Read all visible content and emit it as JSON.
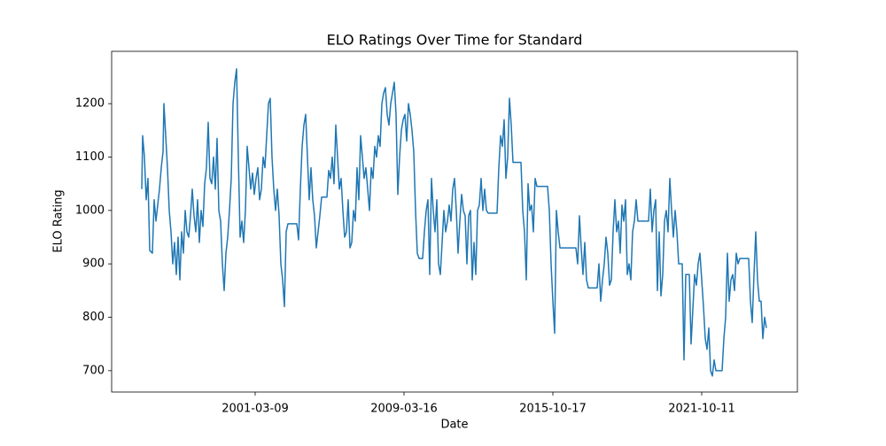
{
  "chart_data": {
    "type": "line",
    "title": "ELO Ratings Over Time for Standard",
    "x_label": "Date",
    "y_label": "ELO Rating",
    "color": "#1f77b4",
    "x": [
      40,
      41,
      43,
      45,
      47,
      49,
      52,
      54,
      56,
      58,
      60,
      62,
      64,
      65,
      67,
      69,
      71,
      73,
      75,
      77,
      79,
      81,
      83,
      85,
      87,
      89,
      91,
      93,
      95,
      97,
      99,
      101,
      103,
      105,
      107,
      109,
      111,
      113,
      115,
      117,
      119,
      121,
      123,
      125,
      127,
      129,
      131,
      133,
      135,
      137,
      139,
      141,
      143,
      145,
      147,
      149,
      151,
      153,
      155,
      157,
      159,
      161,
      163,
      165,
      167,
      169,
      171,
      173,
      175,
      177,
      179,
      181,
      183,
      185,
      187,
      189,
      191,
      193,
      195,
      197,
      199,
      201,
      203,
      205,
      207,
      215,
      217,
      219,
      221,
      223,
      225,
      227,
      229,
      231,
      233,
      235,
      237,
      239,
      241,
      243,
      249,
      251,
      253,
      255,
      257,
      259,
      261,
      263,
      265,
      267,
      269,
      271,
      273,
      275,
      277,
      279,
      281,
      283,
      285,
      287,
      289,
      291,
      293,
      295,
      297,
      299,
      301,
      303,
      305,
      307,
      309,
      311,
      313,
      315,
      317,
      319,
      321,
      323,
      325,
      327,
      329,
      331,
      333,
      335,
      337,
      339,
      341,
      343,
      345,
      347,
      349,
      351,
      353,
      357,
      359,
      361,
      363,
      365,
      367,
      369,
      371,
      373,
      375,
      377,
      379,
      381,
      383,
      385,
      387,
      389,
      391,
      393,
      395,
      397,
      399,
      401,
      403,
      405,
      407,
      409,
      411,
      413,
      415,
      417,
      419,
      421,
      423,
      425,
      427,
      429,
      431,
      441,
      443,
      445,
      447,
      449,
      451,
      453,
      455,
      457,
      459,
      468,
      470,
      472,
      474,
      476,
      478,
      480,
      482,
      484,
      486,
      498,
      500,
      502,
      504,
      506,
      508,
      510,
      512,
      530,
      532,
      534,
      536,
      538,
      540,
      542,
      544,
      554,
      556,
      558,
      560,
      562,
      564,
      566,
      568,
      570,
      572,
      574,
      576,
      578,
      580,
      582,
      584,
      586,
      588,
      590,
      592,
      594,
      596,
      598,
      600,
      604,
      612,
      614,
      616,
      618,
      620,
      622,
      624,
      626,
      628,
      630,
      632,
      634,
      636,
      638,
      640,
      642,
      644,
      646,
      650,
      652,
      654,
      658,
      660,
      664,
      666,
      668,
      670,
      672,
      674,
      676,
      678,
      680,
      682,
      684,
      686,
      688,
      695,
      697,
      699,
      701,
      703,
      705,
      707,
      709,
      711,
      713,
      715,
      725,
      727,
      729,
      731,
      733,
      735,
      737,
      739,
      741,
      743,
      745
    ],
    "values": [
      1040,
      1140,
      1100,
      1020,
      1060,
      925,
      920,
      1020,
      980,
      1010,
      1040,
      1080,
      1110,
      1200,
      1140,
      1080,
      1000,
      960,
      900,
      940,
      880,
      950,
      870,
      960,
      920,
      1000,
      960,
      950,
      990,
      1040,
      990,
      960,
      1020,
      940,
      1000,
      970,
      1050,
      1080,
      1165,
      1060,
      1050,
      1100,
      1040,
      1135,
      1000,
      980,
      900,
      850,
      920,
      950,
      1000,
      1060,
      1200,
      1240,
      1265,
      1100,
      950,
      980,
      940,
      1000,
      1120,
      1080,
      1040,
      1070,
      1030,
      1060,
      1080,
      1020,
      1040,
      1100,
      1080,
      1140,
      1200,
      1210,
      1100,
      1040,
      1000,
      1040,
      990,
      900,
      870,
      820,
      960,
      975,
      975,
      975,
      945,
      1040,
      1120,
      1160,
      1180,
      1100,
      1020,
      1080,
      1020,
      990,
      930,
      960,
      990,
      1025,
      1025,
      1075,
      1060,
      1100,
      1050,
      1160,
      1100,
      1040,
      1060,
      1000,
      950,
      960,
      1020,
      930,
      940,
      1000,
      980,
      1080,
      1020,
      1140,
      1100,
      1060,
      1080,
      1040,
      1000,
      1080,
      1060,
      1120,
      1100,
      1140,
      1120,
      1200,
      1220,
      1230,
      1180,
      1160,
      1200,
      1220,
      1240,
      1180,
      1030,
      1100,
      1150,
      1170,
      1180,
      1130,
      1200,
      1180,
      1150,
      1110,
      1000,
      920,
      910,
      910,
      960,
      1000,
      1020,
      880,
      1060,
      1000,
      960,
      1020,
      900,
      880,
      940,
      1000,
      960,
      980,
      1010,
      980,
      1040,
      1060,
      1000,
      920,
      980,
      1030,
      1000,
      990,
      900,
      990,
      1000,
      870,
      940,
      880,
      1000,
      1010,
      1060,
      1000,
      1040,
      1000,
      995,
      995,
      1080,
      1140,
      1120,
      1170,
      1060,
      1100,
      1210,
      1160,
      1090,
      1090,
      1000,
      960,
      870,
      1050,
      1000,
      1010,
      960,
      1060,
      1045,
      1045,
      1000,
      900,
      830,
      770,
      1000,
      960,
      930,
      930,
      900,
      990,
      930,
      880,
      940,
      870,
      855,
      855,
      900,
      830,
      870,
      900,
      950,
      920,
      860,
      870,
      960,
      1020,
      960,
      980,
      920,
      1010,
      980,
      1020,
      880,
      900,
      870,
      960,
      980,
      1020,
      980,
      980,
      980,
      1040,
      960,
      1000,
      1020,
      850,
      960,
      840,
      880,
      980,
      1000,
      960,
      1060,
      1000,
      950,
      1000,
      960,
      900,
      900,
      720,
      880,
      880,
      750,
      880,
      860,
      900,
      920,
      870,
      820,
      760,
      740,
      780,
      700,
      690,
      720,
      700,
      700,
      760,
      800,
      920,
      830,
      870,
      880,
      850,
      920,
      900,
      910,
      910,
      830,
      790,
      880,
      960,
      870,
      830,
      830,
      760,
      800,
      780
    ],
    "xlim": [
      6,
      780
    ],
    "xticks": [
      {
        "value": 168,
        "label": "2001-03-09"
      },
      {
        "value": 336,
        "label": "2009-03-16"
      },
      {
        "value": 504,
        "label": "2015-10-17"
      },
      {
        "value": 672,
        "label": "2021-10-11"
      }
    ],
    "ylim": [
      660,
      1298
    ],
    "yticks": [
      700,
      800,
      900,
      1000,
      1100,
      1200
    ]
  }
}
